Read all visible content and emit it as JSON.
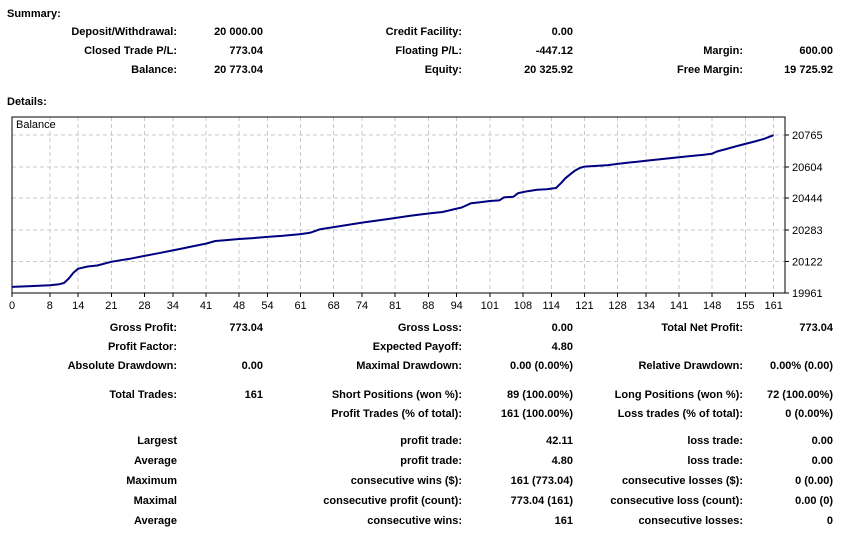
{
  "summary": {
    "heading": "Summary:",
    "rows": [
      [
        "Deposit/Withdrawal:",
        "20 000.00",
        "Credit Facility:",
        "0.00",
        "",
        ""
      ],
      [
        "Closed Trade P/L:",
        "773.04",
        "Floating P/L:",
        "-447.12",
        "Margin:",
        "600.00"
      ],
      [
        "Balance:",
        "20 773.04",
        "Equity:",
        "20 325.92",
        "Free Margin:",
        "19 725.92"
      ]
    ]
  },
  "details": {
    "heading": "Details:",
    "block_a": [
      [
        "Gross Profit:",
        "773.04",
        "Gross Loss:",
        "0.00",
        "Total Net Profit:",
        "773.04"
      ],
      [
        "Profit Factor:",
        "",
        "Expected Payoff:",
        "4.80",
        "",
        ""
      ],
      [
        "Absolute Drawdown:",
        "0.00",
        "Maximal Drawdown:",
        "0.00 (0.00%)",
        "Relative Drawdown:",
        "0.00% (0.00)"
      ]
    ],
    "block_b": [
      [
        "Total Trades:",
        "161",
        "Short Positions (won %):",
        "89 (100.00%)",
        "Long Positions (won %):",
        "72 (100.00%)"
      ],
      [
        "",
        "",
        "Profit Trades (% of total):",
        "161 (100.00%)",
        "Loss trades (% of total):",
        "0 (0.00%)"
      ]
    ],
    "block_c": [
      [
        "Largest",
        "",
        "profit trade:",
        "42.11",
        "loss trade:",
        "0.00"
      ],
      [
        "Average",
        "",
        "profit trade:",
        "4.80",
        "loss trade:",
        "0.00"
      ],
      [
        "Maximum",
        "",
        "consecutive wins ($):",
        "161 (773.04)",
        "consecutive losses ($):",
        "0 (0.00)"
      ],
      [
        "Maximal",
        "",
        "consecutive profit (count):",
        "773.04 (161)",
        "consecutive loss (count):",
        "0.00 (0)"
      ],
      [
        "Average",
        "",
        "consecutive wins:",
        "161",
        "consecutive losses:",
        "0"
      ]
    ]
  },
  "chart_data": {
    "type": "line",
    "title": "Balance",
    "x_ticks": [
      0,
      8,
      14,
      21,
      28,
      34,
      41,
      48,
      54,
      61,
      68,
      74,
      81,
      88,
      94,
      101,
      108,
      114,
      121,
      128,
      134,
      141,
      148,
      155,
      161
    ],
    "y_ticks": [
      19961,
      20122,
      20283,
      20444,
      20604,
      20765
    ],
    "x_range": [
      0,
      163.4
    ],
    "y_range": [
      19961,
      20858
    ],
    "grid": "dashed",
    "grid_color": "#c9c9c9",
    "border_color": "#000000",
    "background": "#ffffff",
    "series": [
      {
        "name": "Balance",
        "color": "#000080",
        "points": [
          [
            0,
            19992
          ],
          [
            4,
            19996
          ],
          [
            8,
            20001
          ],
          [
            10,
            20006
          ],
          [
            11,
            20012
          ],
          [
            12,
            20035
          ],
          [
            13,
            20065
          ],
          [
            14,
            20085
          ],
          [
            16,
            20096
          ],
          [
            18,
            20101
          ],
          [
            21,
            20120
          ],
          [
            23,
            20128
          ],
          [
            25,
            20136
          ],
          [
            28,
            20150
          ],
          [
            31,
            20164
          ],
          [
            34,
            20178
          ],
          [
            36,
            20188
          ],
          [
            38,
            20198
          ],
          [
            41,
            20213
          ],
          [
            43,
            20226
          ],
          [
            45,
            20230
          ],
          [
            48,
            20236
          ],
          [
            51,
            20241
          ],
          [
            54,
            20247
          ],
          [
            57,
            20252
          ],
          [
            61,
            20261
          ],
          [
            63,
            20268
          ],
          [
            65,
            20285
          ],
          [
            68,
            20297
          ],
          [
            71,
            20308
          ],
          [
            74,
            20320
          ],
          [
            78,
            20333
          ],
          [
            81,
            20343
          ],
          [
            84,
            20354
          ],
          [
            88,
            20366
          ],
          [
            91,
            20374
          ],
          [
            94,
            20391
          ],
          [
            95,
            20396
          ],
          [
            97,
            20418
          ],
          [
            99,
            20424
          ],
          [
            101,
            20430
          ],
          [
            103,
            20433
          ],
          [
            104,
            20448
          ],
          [
            106,
            20452
          ],
          [
            107,
            20470
          ],
          [
            109,
            20480
          ],
          [
            111,
            20487
          ],
          [
            113,
            20490
          ],
          [
            115,
            20496
          ],
          [
            116,
            20520
          ],
          [
            117,
            20546
          ],
          [
            118,
            20566
          ],
          [
            119,
            20585
          ],
          [
            120,
            20598
          ],
          [
            121,
            20605
          ],
          [
            124,
            20610
          ],
          [
            126,
            20613
          ],
          [
            128,
            20619
          ],
          [
            131,
            20627
          ],
          [
            134,
            20635
          ],
          [
            137,
            20643
          ],
          [
            140,
            20650
          ],
          [
            143,
            20658
          ],
          [
            146,
            20665
          ],
          [
            148,
            20671
          ],
          [
            149,
            20682
          ],
          [
            151,
            20695
          ],
          [
            153,
            20708
          ],
          [
            155,
            20721
          ],
          [
            157,
            20733
          ],
          [
            159,
            20747
          ],
          [
            161,
            20765
          ]
        ]
      }
    ]
  }
}
